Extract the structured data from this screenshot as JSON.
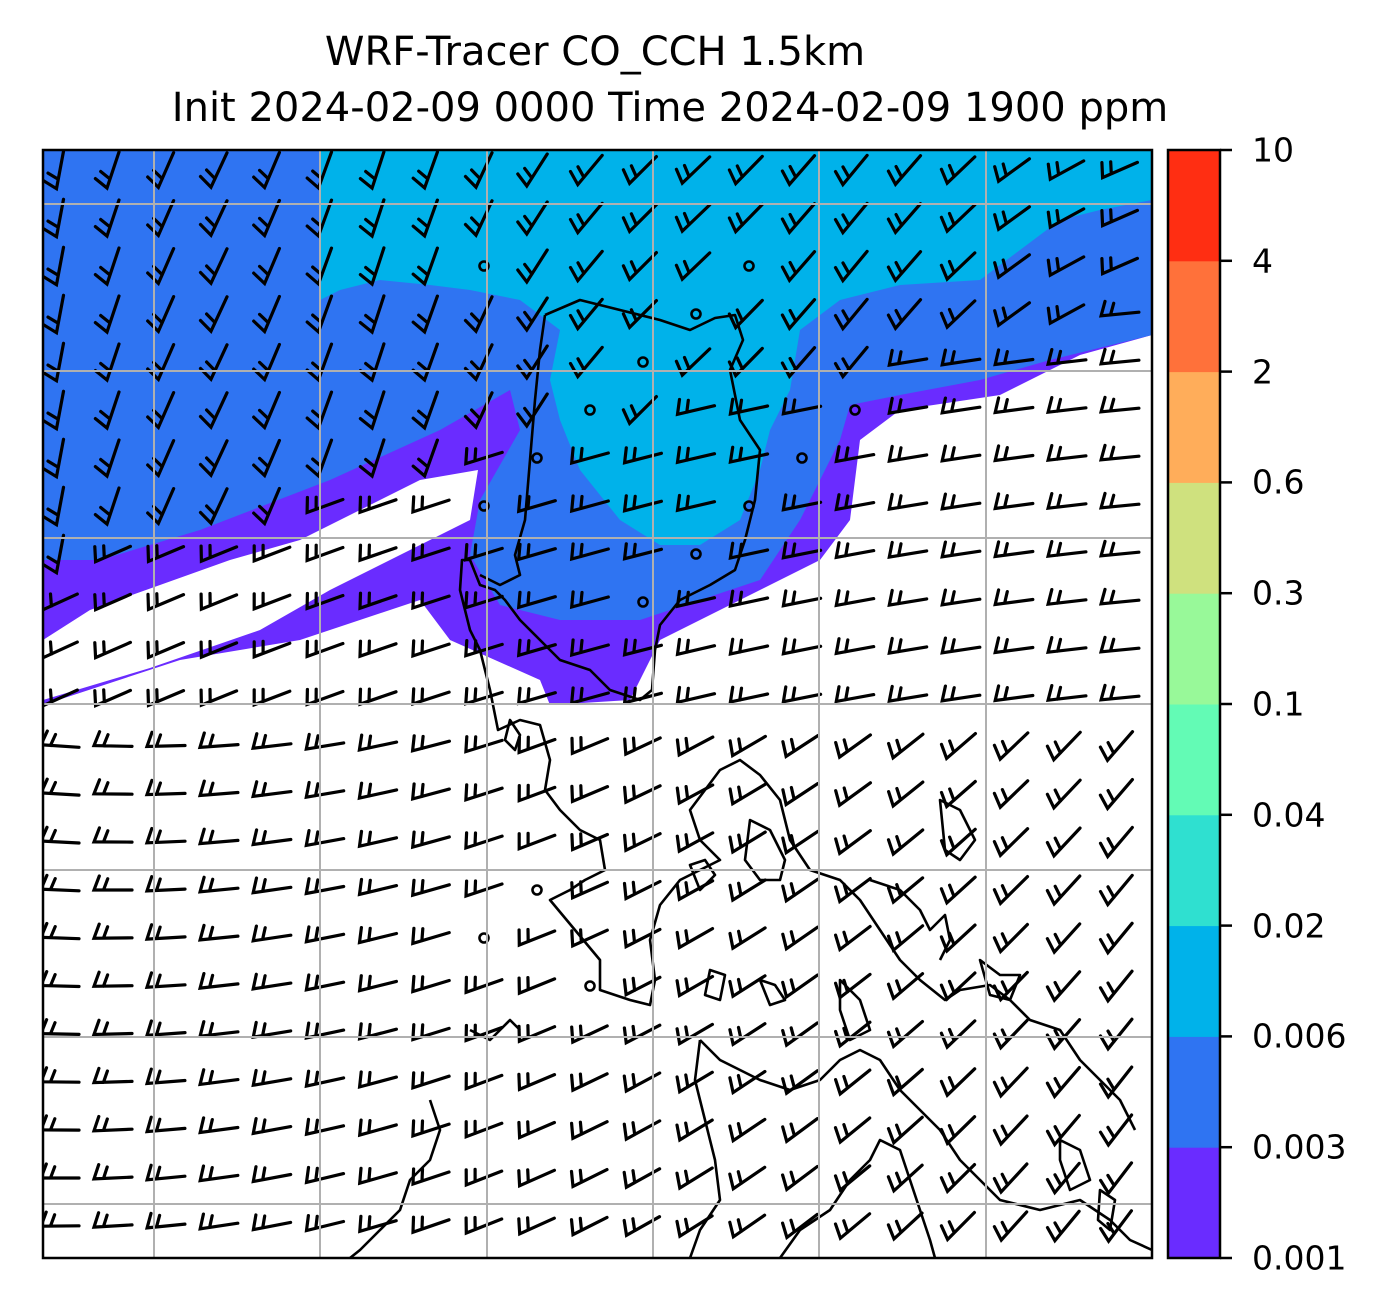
{
  "title": {
    "line1": "WRF-Tracer CO_CCH 1.5km",
    "line2": "Init 2024-02-09 0000 Time 2024-02-09 1900 ppm"
  },
  "colorbar": {
    "levels": [
      "0.001",
      "0.003",
      "0.006",
      "0.02",
      "0.04",
      "0.1",
      "0.3",
      "0.6",
      "2",
      "4",
      "10"
    ],
    "colors": [
      "#6a2cff",
      "#2f74f2",
      "#00b2ea",
      "#2fe0d0",
      "#63fbb5",
      "#98f999",
      "#cfe17e",
      "#ffad5a",
      "#ff713a",
      "#ff2e12"
    ]
  },
  "chart_data": {
    "type": "heatmap",
    "field": "CO_CCH tracer concentration (ppm) with wind barbs and coastlines",
    "contour_levels": [
      0.001,
      0.003,
      0.006,
      0.02,
      0.04,
      0.1,
      0.3,
      0.6,
      2,
      4,
      10
    ],
    "grid": true
  }
}
